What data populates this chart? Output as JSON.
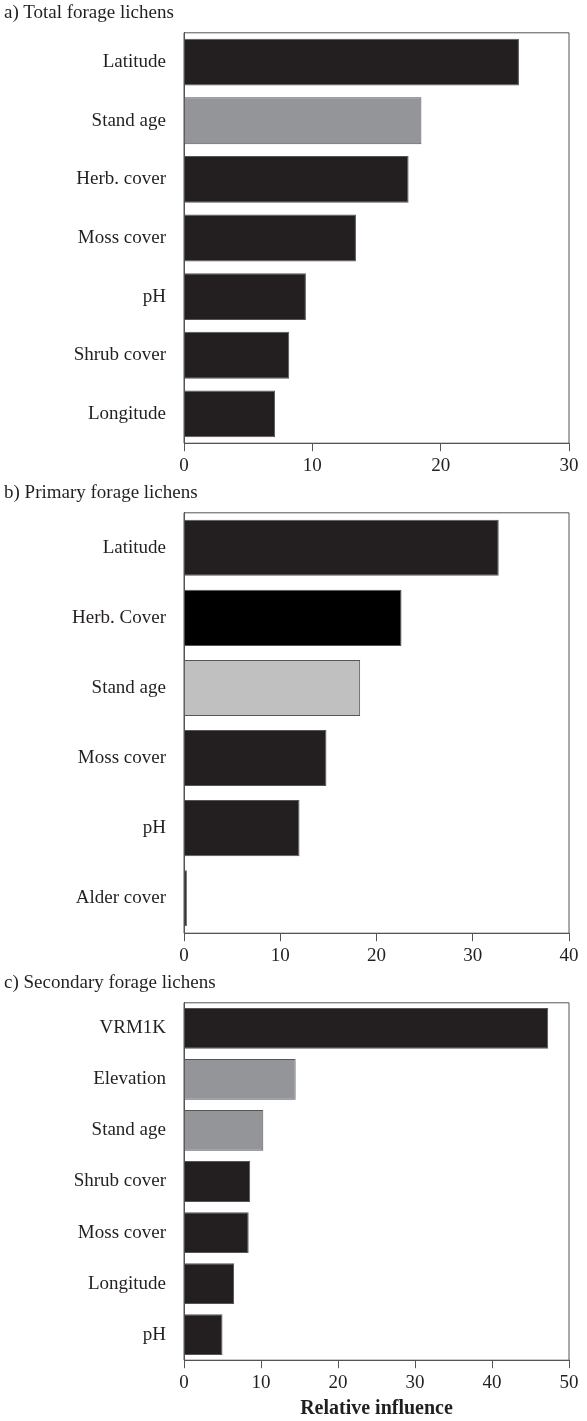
{
  "chart_data": [
    {
      "type": "bar",
      "orientation": "horizontal",
      "title": "a) Total forage lichens",
      "categories": [
        "Latitude",
        "Stand age",
        "Herb. cover",
        "Moss cover",
        "pH",
        "Shrub cover",
        "Longitude"
      ],
      "values": [
        26.1,
        18.5,
        17.5,
        13.4,
        9.5,
        8.2,
        7.1
      ],
      "colors": [
        "#231f20",
        "#939598",
        "#231f20",
        "#231f20",
        "#231f20",
        "#231f20",
        "#231f20"
      ],
      "xlim": [
        0,
        30
      ],
      "xticks": [
        0,
        10,
        20,
        30
      ],
      "grid": false
    },
    {
      "type": "bar",
      "orientation": "horizontal",
      "title": "b) Primary forage lichens",
      "categories": [
        "Latitude",
        "Herb. Cover",
        "Stand age",
        "Moss cover",
        "pH",
        "Alder cover"
      ],
      "values": [
        32.7,
        22.6,
        18.3,
        14.8,
        12.0,
        0.3
      ],
      "colors": [
        "#231f20",
        "#000000",
        "#c0c0c0",
        "#231f20",
        "#231f20",
        "#231f20"
      ],
      "xlim": [
        0,
        40
      ],
      "xticks": [
        0,
        10,
        20,
        30,
        40
      ],
      "grid": false
    },
    {
      "type": "bar",
      "orientation": "horizontal",
      "title": "c) Secondary forage lichens",
      "xlabel": "Relative influence",
      "categories": [
        "VRM1K",
        "Elevation",
        "Stand age",
        "Shrub cover",
        "Moss cover",
        "Longitude",
        "pH"
      ],
      "values": [
        47.3,
        14.5,
        10.3,
        8.6,
        8.4,
        6.5,
        5.0
      ],
      "colors": [
        "#231f20",
        "#939598",
        "#939598",
        "#231f20",
        "#231f20",
        "#231f20",
        "#231f20"
      ],
      "xlim": [
        0,
        50
      ],
      "xticks": [
        0,
        10,
        20,
        30,
        40,
        50
      ],
      "grid": false
    }
  ]
}
